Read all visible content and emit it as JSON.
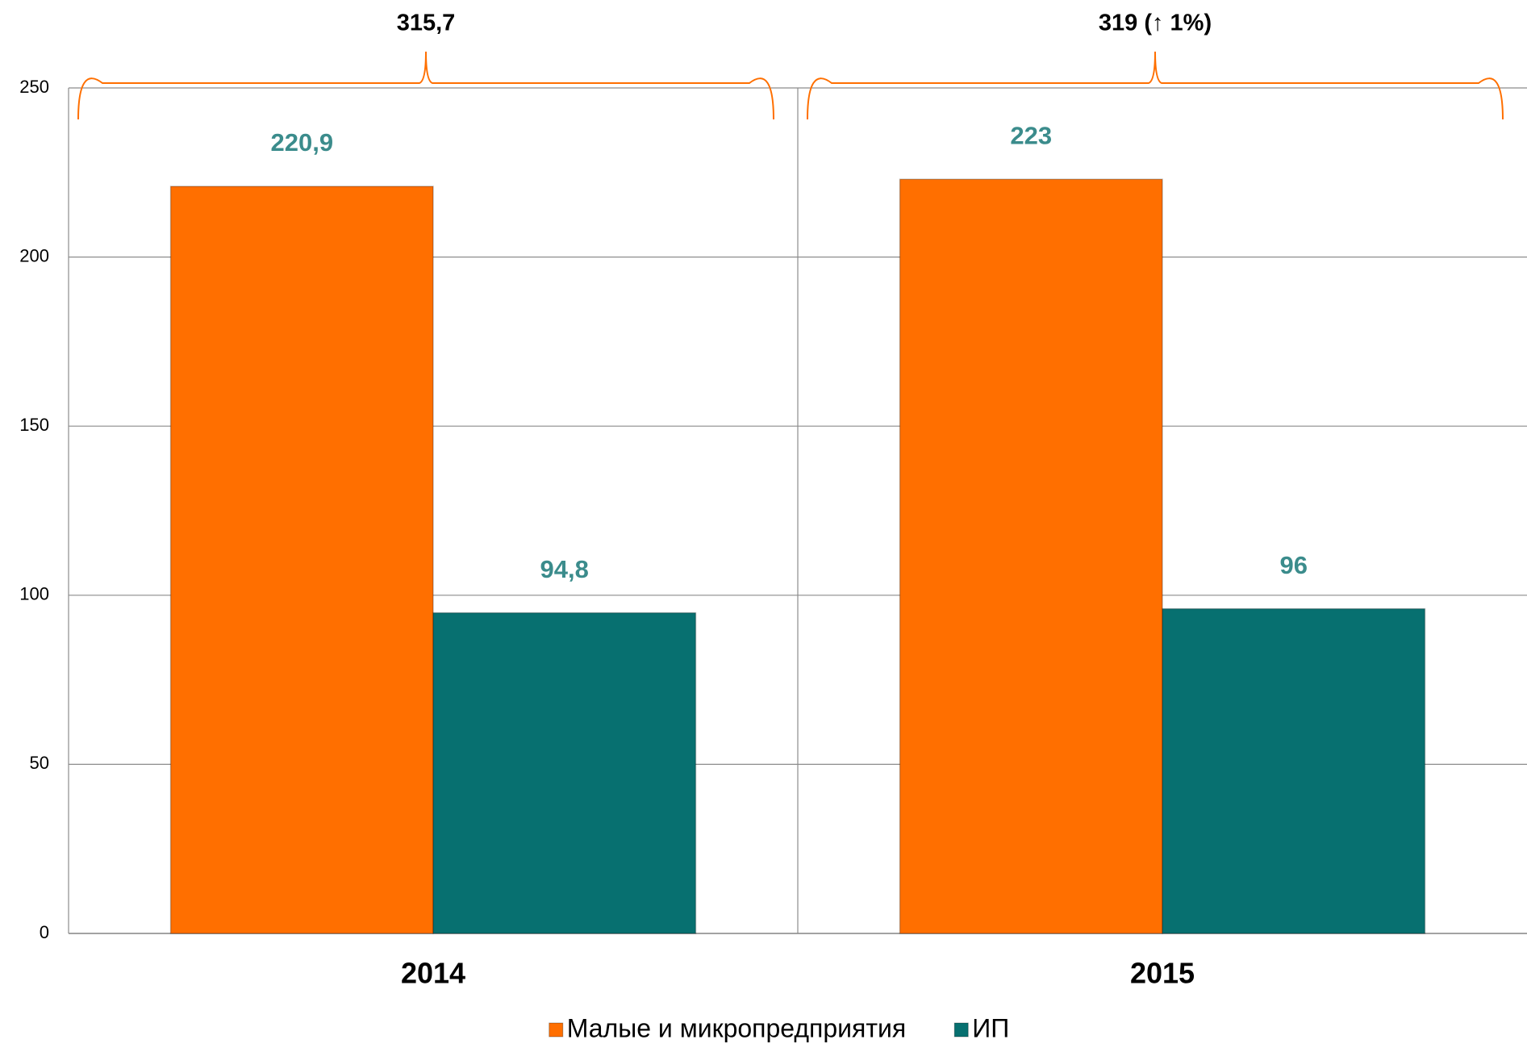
{
  "chart_data": {
    "type": "bar",
    "categories": [
      "2014",
      "2015"
    ],
    "series": [
      {
        "name": "Малые и микропредприятия",
        "color": "#ff6f00",
        "values": [
          220.9,
          223
        ],
        "value_labels": [
          "220,9",
          "223"
        ]
      },
      {
        "name": "ИП",
        "color": "#077070",
        "values": [
          94.8,
          96
        ],
        "value_labels": [
          "94,8",
          "96"
        ]
      }
    ],
    "annotations": [
      "315,7",
      "319 (↑ 1%)"
    ],
    "ylim": [
      0,
      250
    ],
    "yticks": [
      0,
      50,
      100,
      150,
      200,
      250
    ],
    "grid": true,
    "legend": "bottom"
  }
}
